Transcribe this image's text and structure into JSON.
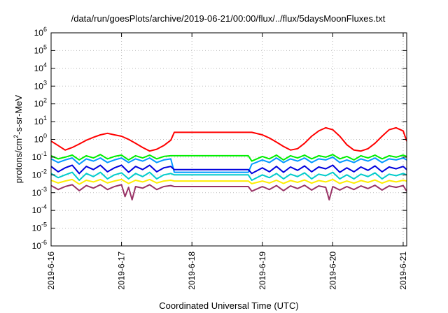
{
  "chart_data": {
    "type": "line",
    "title": "/data/run/goesPlots/archive/2019-06-21/00:00/flux/../flux/5daysMoonFluxes.txt",
    "xlabel": "Coordinated Universal Time (UTC)",
    "ylabel": {
      "prefix": "protons/cm",
      "sup": "2",
      "suffix": "-s-sr-MeV"
    },
    "yscale": "log",
    "ylim": [
      1e-06,
      1000000.0
    ],
    "xlim": [
      0,
      5.05
    ],
    "grid": true,
    "y_ticks": [
      {
        "value": 1e-06,
        "base": "10",
        "exp": "-6"
      },
      {
        "value": 1e-05,
        "base": "10",
        "exp": "-5"
      },
      {
        "value": 0.0001,
        "base": "10",
        "exp": "-4"
      },
      {
        "value": 0.001,
        "base": "10",
        "exp": "-3"
      },
      {
        "value": 0.01,
        "base": "10",
        "exp": "-2"
      },
      {
        "value": 0.1,
        "base": "10",
        "exp": "-1"
      },
      {
        "value": 1,
        "base": "10",
        "exp": "0"
      },
      {
        "value": 10,
        "base": "10",
        "exp": "1"
      },
      {
        "value": 100,
        "base": "10",
        "exp": "2"
      },
      {
        "value": 1000,
        "base": "10",
        "exp": "3"
      },
      {
        "value": 10000,
        "base": "10",
        "exp": "4"
      },
      {
        "value": 100000,
        "base": "10",
        "exp": "5"
      },
      {
        "value": 1000000,
        "base": "10",
        "exp": "6"
      }
    ],
    "x_ticks": [
      {
        "value": 0,
        "label": "2019-6-16"
      },
      {
        "value": 1,
        "label": "2019-6-17"
      },
      {
        "value": 2,
        "label": "2019-6-18"
      },
      {
        "value": 3,
        "label": "2019-6-19"
      },
      {
        "value": 4,
        "label": "2019-6-20"
      },
      {
        "value": 5,
        "label": "2019-6-21"
      }
    ],
    "series": [
      {
        "color": "#ff0000",
        "width": 2,
        "x": [
          0,
          0.1,
          0.2,
          0.3,
          0.4,
          0.5,
          0.6,
          0.7,
          0.8,
          0.9,
          1.0,
          1.1,
          1.2,
          1.3,
          1.4,
          1.5,
          1.6,
          1.7,
          1.75,
          2.0,
          2.5,
          2.85,
          3.0,
          3.1,
          3.2,
          3.3,
          3.4,
          3.5,
          3.6,
          3.7,
          3.8,
          3.9,
          4.0,
          4.1,
          4.2,
          4.3,
          4.4,
          4.5,
          4.6,
          4.7,
          4.8,
          4.9,
          5.0,
          5.05
        ],
        "y": [
          0.8,
          0.45,
          0.25,
          0.35,
          0.55,
          0.9,
          1.3,
          1.8,
          2.2,
          1.8,
          1.5,
          1.0,
          0.6,
          0.35,
          0.22,
          0.28,
          0.45,
          0.9,
          2.5,
          2.5,
          2.5,
          2.5,
          1.8,
          1.2,
          0.7,
          0.4,
          0.25,
          0.3,
          0.6,
          1.5,
          3.0,
          4.5,
          3.5,
          1.5,
          0.5,
          0.25,
          0.22,
          0.3,
          0.6,
          1.5,
          3.5,
          4.5,
          3.0,
          0.8
        ]
      },
      {
        "color": "#00ee00",
        "width": 2,
        "x": [
          0,
          0.1,
          0.2,
          0.3,
          0.4,
          0.5,
          0.6,
          0.7,
          0.8,
          0.9,
          1.0,
          1.1,
          1.2,
          1.3,
          1.4,
          1.5,
          1.6,
          1.7,
          1.75,
          2.0,
          2.5,
          2.8,
          2.85,
          3.0,
          3.1,
          3.2,
          3.3,
          3.4,
          3.5,
          3.6,
          3.7,
          3.8,
          3.9,
          4.0,
          4.1,
          4.2,
          4.3,
          4.4,
          4.5,
          4.6,
          4.7,
          4.8,
          4.9,
          5.0,
          5.05
        ],
        "y": [
          0.12,
          0.08,
          0.1,
          0.13,
          0.07,
          0.12,
          0.09,
          0.14,
          0.08,
          0.11,
          0.13,
          0.07,
          0.12,
          0.09,
          0.13,
          0.08,
          0.11,
          0.12,
          0.12,
          0.12,
          0.12,
          0.12,
          0.06,
          0.11,
          0.08,
          0.13,
          0.07,
          0.12,
          0.09,
          0.13,
          0.08,
          0.12,
          0.1,
          0.14,
          0.08,
          0.11,
          0.07,
          0.12,
          0.09,
          0.13,
          0.08,
          0.12,
          0.1,
          0.13,
          0.11
        ]
      },
      {
        "color": "#0099ff",
        "width": 2,
        "x": [
          0,
          0.1,
          0.2,
          0.3,
          0.4,
          0.5,
          0.6,
          0.7,
          0.8,
          0.9,
          1.0,
          1.1,
          1.2,
          1.3,
          1.4,
          1.5,
          1.6,
          1.7,
          1.75,
          2.0,
          2.5,
          2.8,
          2.85,
          3.0,
          3.1,
          3.2,
          3.3,
          3.4,
          3.5,
          3.6,
          3.7,
          3.8,
          3.9,
          4.0,
          4.1,
          4.2,
          4.3,
          4.4,
          4.5,
          4.6,
          4.7,
          4.8,
          4.9,
          5.0,
          5.05
        ],
        "y": [
          0.08,
          0.05,
          0.07,
          0.09,
          0.04,
          0.08,
          0.06,
          0.09,
          0.05,
          0.07,
          0.09,
          0.05,
          0.08,
          0.06,
          0.09,
          0.05,
          0.07,
          0.08,
          0.014,
          0.014,
          0.014,
          0.014,
          0.04,
          0.07,
          0.05,
          0.09,
          0.05,
          0.08,
          0.06,
          0.09,
          0.05,
          0.08,
          0.07,
          0.1,
          0.05,
          0.07,
          0.05,
          0.08,
          0.06,
          0.09,
          0.05,
          0.08,
          0.07,
          0.09,
          0.07
        ]
      },
      {
        "color": "#0000dd",
        "width": 2,
        "x": [
          0,
          0.1,
          0.2,
          0.3,
          0.4,
          0.5,
          0.6,
          0.7,
          0.8,
          0.9,
          1.0,
          1.1,
          1.2,
          1.3,
          1.4,
          1.5,
          1.6,
          1.7,
          1.75,
          2.0,
          2.5,
          2.8,
          2.85,
          3.0,
          3.1,
          3.2,
          3.3,
          3.4,
          3.5,
          3.6,
          3.7,
          3.8,
          3.9,
          4.0,
          4.1,
          4.2,
          4.3,
          4.4,
          4.5,
          4.6,
          4.7,
          4.8,
          4.9,
          5.0,
          5.05
        ],
        "y": [
          0.03,
          0.015,
          0.025,
          0.035,
          0.012,
          0.03,
          0.02,
          0.035,
          0.015,
          0.025,
          0.035,
          0.014,
          0.03,
          0.02,
          0.035,
          0.015,
          0.025,
          0.03,
          0.02,
          0.02,
          0.02,
          0.02,
          0.012,
          0.025,
          0.015,
          0.03,
          0.014,
          0.028,
          0.018,
          0.032,
          0.015,
          0.028,
          0.022,
          0.035,
          0.014,
          0.025,
          0.015,
          0.028,
          0.018,
          0.032,
          0.015,
          0.028,
          0.022,
          0.03,
          0.02
        ]
      },
      {
        "color": "#00cccc",
        "width": 2,
        "x": [
          0,
          0.1,
          0.2,
          0.3,
          0.4,
          0.5,
          0.6,
          0.7,
          0.8,
          0.9,
          1.0,
          1.1,
          1.2,
          1.3,
          1.4,
          1.5,
          1.6,
          1.7,
          1.75,
          2.0,
          2.5,
          2.8,
          2.85,
          3.0,
          3.1,
          3.2,
          3.3,
          3.4,
          3.5,
          3.6,
          3.7,
          3.8,
          3.9,
          4.0,
          4.1,
          4.2,
          4.3,
          4.4,
          4.5,
          4.6,
          4.7,
          4.8,
          4.9,
          5.0,
          5.05
        ],
        "y": [
          0.012,
          0.007,
          0.01,
          0.014,
          0.005,
          0.012,
          0.008,
          0.014,
          0.006,
          0.01,
          0.013,
          0.006,
          0.012,
          0.008,
          0.014,
          0.006,
          0.01,
          0.012,
          0.01,
          0.01,
          0.01,
          0.01,
          0.005,
          0.01,
          0.007,
          0.012,
          0.006,
          0.011,
          0.008,
          0.013,
          0.006,
          0.011,
          0.009,
          0.014,
          0.006,
          0.01,
          0.006,
          0.011,
          0.008,
          0.013,
          0.006,
          0.011,
          0.009,
          0.012,
          0.01
        ]
      },
      {
        "color": "#ffee00",
        "width": 2,
        "x": [
          0,
          0.1,
          0.2,
          0.3,
          0.4,
          0.5,
          0.6,
          0.7,
          0.8,
          0.9,
          1.0,
          1.1,
          1.2,
          1.3,
          1.4,
          1.5,
          1.6,
          1.7,
          1.75,
          2.0,
          2.5,
          2.8,
          2.85,
          3.0,
          3.1,
          3.2,
          3.3,
          3.4,
          3.5,
          3.6,
          3.7,
          3.8,
          3.9,
          4.0,
          4.1,
          4.2,
          4.3,
          4.4,
          4.5,
          4.6,
          4.7,
          4.8,
          4.9,
          5.0,
          5.05
        ],
        "y": [
          0.005,
          0.0035,
          0.0045,
          0.0055,
          0.003,
          0.005,
          0.004,
          0.0055,
          0.0035,
          0.0045,
          0.0055,
          0.0033,
          0.005,
          0.004,
          0.0055,
          0.0035,
          0.0045,
          0.005,
          0.0045,
          0.0045,
          0.0045,
          0.0045,
          0.0032,
          0.0045,
          0.0035,
          0.005,
          0.0033,
          0.0048,
          0.0038,
          0.0052,
          0.0034,
          0.0048,
          0.004,
          0.0055,
          0.0033,
          0.0045,
          0.0034,
          0.0048,
          0.0038,
          0.0052,
          0.0034,
          0.0048,
          0.004,
          0.005,
          0.0045
        ]
      },
      {
        "color": "#993366",
        "width": 2,
        "x": [
          0,
          0.1,
          0.2,
          0.3,
          0.4,
          0.5,
          0.6,
          0.7,
          0.8,
          0.9,
          1.0,
          1.05,
          1.1,
          1.15,
          1.2,
          1.3,
          1.4,
          1.5,
          1.6,
          1.7,
          1.75,
          2.0,
          2.5,
          2.8,
          2.85,
          3.0,
          3.1,
          3.2,
          3.3,
          3.4,
          3.5,
          3.6,
          3.7,
          3.8,
          3.9,
          3.95,
          4.0,
          4.1,
          4.2,
          4.3,
          4.4,
          4.5,
          4.6,
          4.7,
          4.8,
          4.9,
          5.0,
          5.05
        ],
        "y": [
          0.0025,
          0.0015,
          0.0022,
          0.0028,
          0.0013,
          0.0025,
          0.0018,
          0.0028,
          0.0015,
          0.0022,
          0.0028,
          0.0006,
          0.002,
          0.0004,
          0.0022,
          0.0018,
          0.0028,
          0.0015,
          0.0022,
          0.0025,
          0.0022,
          0.0022,
          0.0022,
          0.0022,
          0.0012,
          0.0022,
          0.0015,
          0.0025,
          0.0013,
          0.0024,
          0.0017,
          0.0026,
          0.0014,
          0.0024,
          0.002,
          0.0004,
          0.0022,
          0.0014,
          0.0022,
          0.0015,
          0.0024,
          0.0017,
          0.0026,
          0.0014,
          0.0024,
          0.002,
          0.0025,
          0.0012
        ]
      }
    ]
  }
}
